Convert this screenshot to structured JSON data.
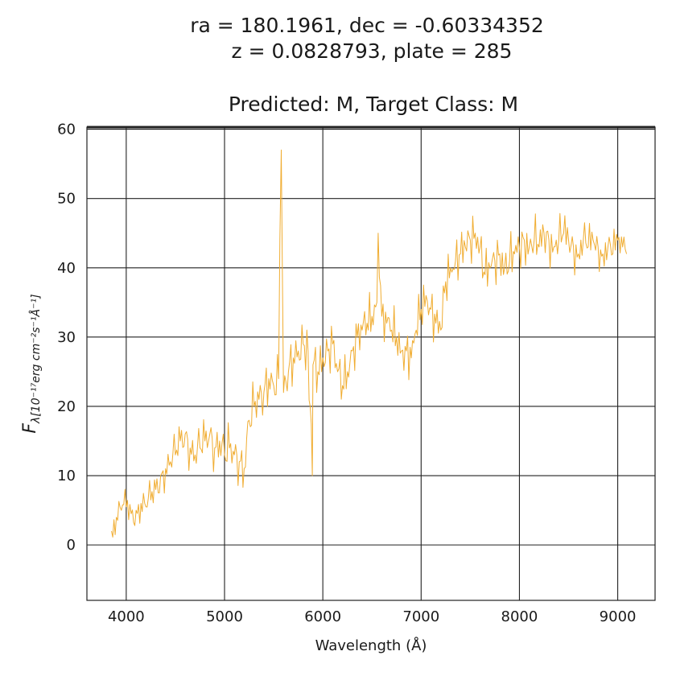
{
  "chart_data": {
    "type": "line",
    "title_lines": [
      "ra = 180.1961, dec = -0.60334352",
      "z = 0.0828793, plate = 285",
      "Predicted: M, Target Class: M"
    ],
    "xlabel": "Wavelength (Å)",
    "ylabel": {
      "symbol": "F",
      "subscript": "λ[10⁻¹⁷erg cm⁻²s⁻¹Å⁻¹]"
    },
    "xlim": [
      3600,
      9380
    ],
    "ylim": [
      -8,
      60.3
    ],
    "xticks": [
      4000,
      5000,
      6000,
      7000,
      8000,
      9000
    ],
    "yticks": [
      0,
      10,
      20,
      30,
      40,
      50,
      60
    ],
    "grid": true,
    "series": [
      {
        "color": "#f0ad32",
        "x": [
          3850,
          3900,
          3950,
          4000,
          4050,
          4100,
          4150,
          4200,
          4250,
          4300,
          4350,
          4400,
          4450,
          4500,
          4550,
          4600,
          4650,
          4700,
          4750,
          4800,
          4850,
          4900,
          4950,
          5000,
          5050,
          5100,
          5150,
          5200,
          5250,
          5300,
          5350,
          5400,
          5450,
          5500,
          5550,
          5577,
          5600,
          5650,
          5700,
          5750,
          5800,
          5850,
          5893,
          5900,
          5950,
          6000,
          6050,
          6100,
          6150,
          6200,
          6250,
          6300,
          6350,
          6400,
          6450,
          6500,
          6550,
          6563,
          6600,
          6650,
          6700,
          6750,
          6800,
          6850,
          6900,
          6950,
          7000,
          7050,
          7100,
          7150,
          7200,
          7250,
          7300,
          7350,
          7400,
          7450,
          7500,
          7550,
          7600,
          7650,
          7700,
          7750,
          7800,
          7850,
          7900,
          7950,
          8000,
          8050,
          8100,
          8150,
          8200,
          8250,
          8300,
          8350,
          8400,
          8450,
          8500,
          8550,
          8600,
          8650,
          8700,
          8750,
          8800,
          8850,
          8900,
          8950,
          9000,
          9050,
          9090
        ],
        "y": [
          2,
          4,
          5,
          5.5,
          4.5,
          5,
          6,
          5.5,
          6.5,
          8,
          10,
          11,
          12,
          13,
          15,
          16,
          14,
          13,
          14,
          15,
          16,
          14,
          15,
          13,
          14,
          13,
          12,
          11,
          18,
          20,
          21,
          22,
          24,
          23,
          24,
          57,
          22,
          25,
          27,
          28,
          29,
          28,
          10,
          26,
          25,
          27,
          28,
          29,
          25,
          23,
          25,
          28,
          30,
          31,
          32,
          33,
          35,
          45,
          33,
          32,
          31,
          30,
          28,
          28,
          27,
          31,
          34,
          36,
          34,
          32,
          31,
          38,
          40,
          41,
          42,
          43,
          44,
          45,
          43,
          39,
          40,
          41,
          42,
          40,
          41,
          42,
          43,
          44,
          43,
          44,
          43,
          45,
          44,
          43,
          44,
          45,
          44,
          43,
          42,
          44,
          43,
          44,
          43,
          42,
          43,
          42,
          44,
          43,
          42
        ]
      }
    ]
  }
}
